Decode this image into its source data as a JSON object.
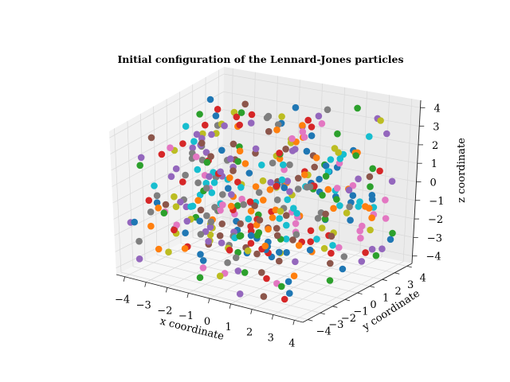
{
  "chart_data": {
    "type": "scatter",
    "projection": "3d",
    "title": "Initial configuration of the Lennard-Jones particles",
    "xlabel": "x coordinate",
    "ylabel": "y coordinate",
    "zlabel": "z coordinate",
    "xlim": [
      -4.4,
      4.4
    ],
    "ylim": [
      -4.4,
      4.4
    ],
    "zlim": [
      -4.4,
      4.4
    ],
    "xticks": [
      "−4",
      "−3",
      "−2",
      "−1",
      "0",
      "1",
      "2",
      "3",
      "4"
    ],
    "yticks": [
      "−4",
      "−3",
      "−2",
      "−1",
      "0",
      "1",
      "2",
      "3",
      "4"
    ],
    "zticks": [
      "−4",
      "−3",
      "−2",
      "−1",
      "0",
      "1",
      "2",
      "3",
      "4"
    ],
    "grid": true,
    "legend": "none",
    "particle_count": 400,
    "point_colors": [
      "#1f77b4",
      "#ff7f0e",
      "#2ca02c",
      "#d62728",
      "#9467bd",
      "#8c564b",
      "#e377c2",
      "#7f7f7f",
      "#bcbd22",
      "#17becf"
    ],
    "pane_colors": {
      "left": "#f2f2f2",
      "right": "#ebebeb",
      "floor": "#f7f7f7"
    },
    "note_points": "positions are approximately uniform random in [-4,4]^3"
  }
}
